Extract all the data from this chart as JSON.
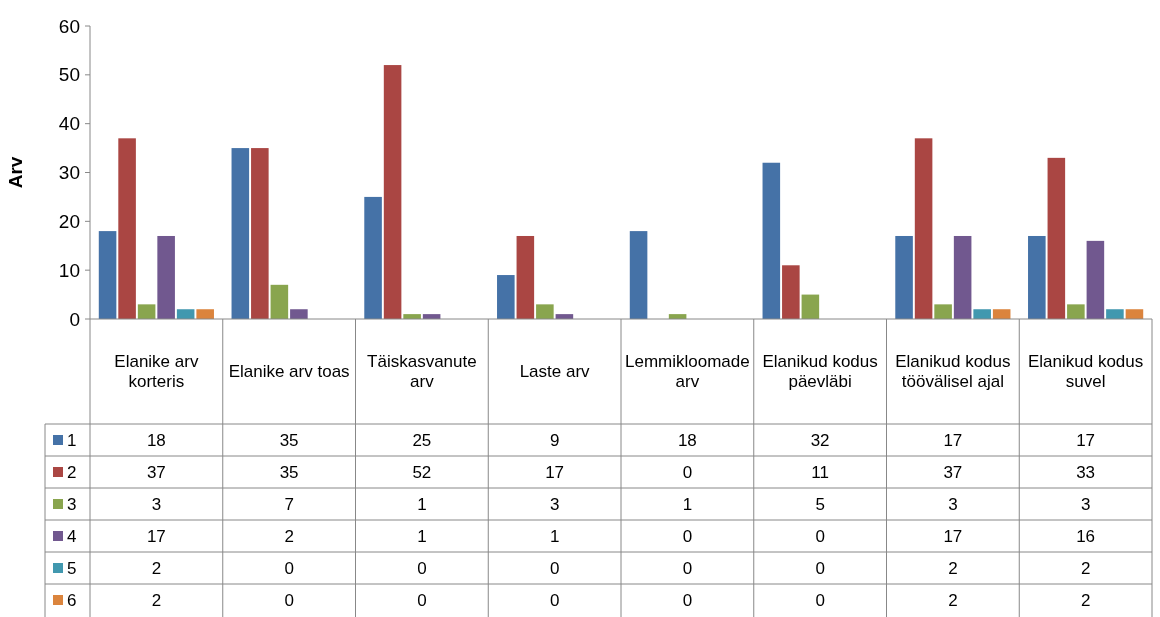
{
  "chart_data": {
    "type": "bar",
    "ylabel": "Arv",
    "categories": [
      "Elanike arv korteris",
      "Elanike arv toas",
      "Täiskasvanute arv",
      "Laste arv",
      "Lemmikloomade arv",
      "Elanikud kodus päevläbi",
      "Elanikud kodus töövälisel ajal",
      "Elanikud kodus suvel"
    ],
    "series": [
      {
        "name": "1",
        "color": "#4572a7",
        "values": [
          18,
          35,
          25,
          9,
          18,
          32,
          17,
          17
        ]
      },
      {
        "name": "2",
        "color": "#aa4643",
        "values": [
          37,
          35,
          52,
          17,
          0,
          11,
          37,
          33
        ]
      },
      {
        "name": "3",
        "color": "#89a54e",
        "values": [
          3,
          7,
          1,
          3,
          1,
          5,
          3,
          3
        ]
      },
      {
        "name": "4",
        "color": "#71588f",
        "values": [
          17,
          2,
          1,
          1,
          0,
          0,
          17,
          16
        ]
      },
      {
        "name": "5",
        "color": "#4198af",
        "values": [
          2,
          0,
          0,
          0,
          0,
          0,
          2,
          2
        ]
      },
      {
        "name": "6",
        "color": "#db843d",
        "values": [
          2,
          0,
          0,
          0,
          0,
          0,
          2,
          2
        ]
      }
    ],
    "ylim": [
      0,
      60
    ],
    "yticks": [
      0,
      10,
      20,
      30,
      40,
      50,
      60
    ],
    "data_labels": true,
    "legend": "bottom left"
  }
}
